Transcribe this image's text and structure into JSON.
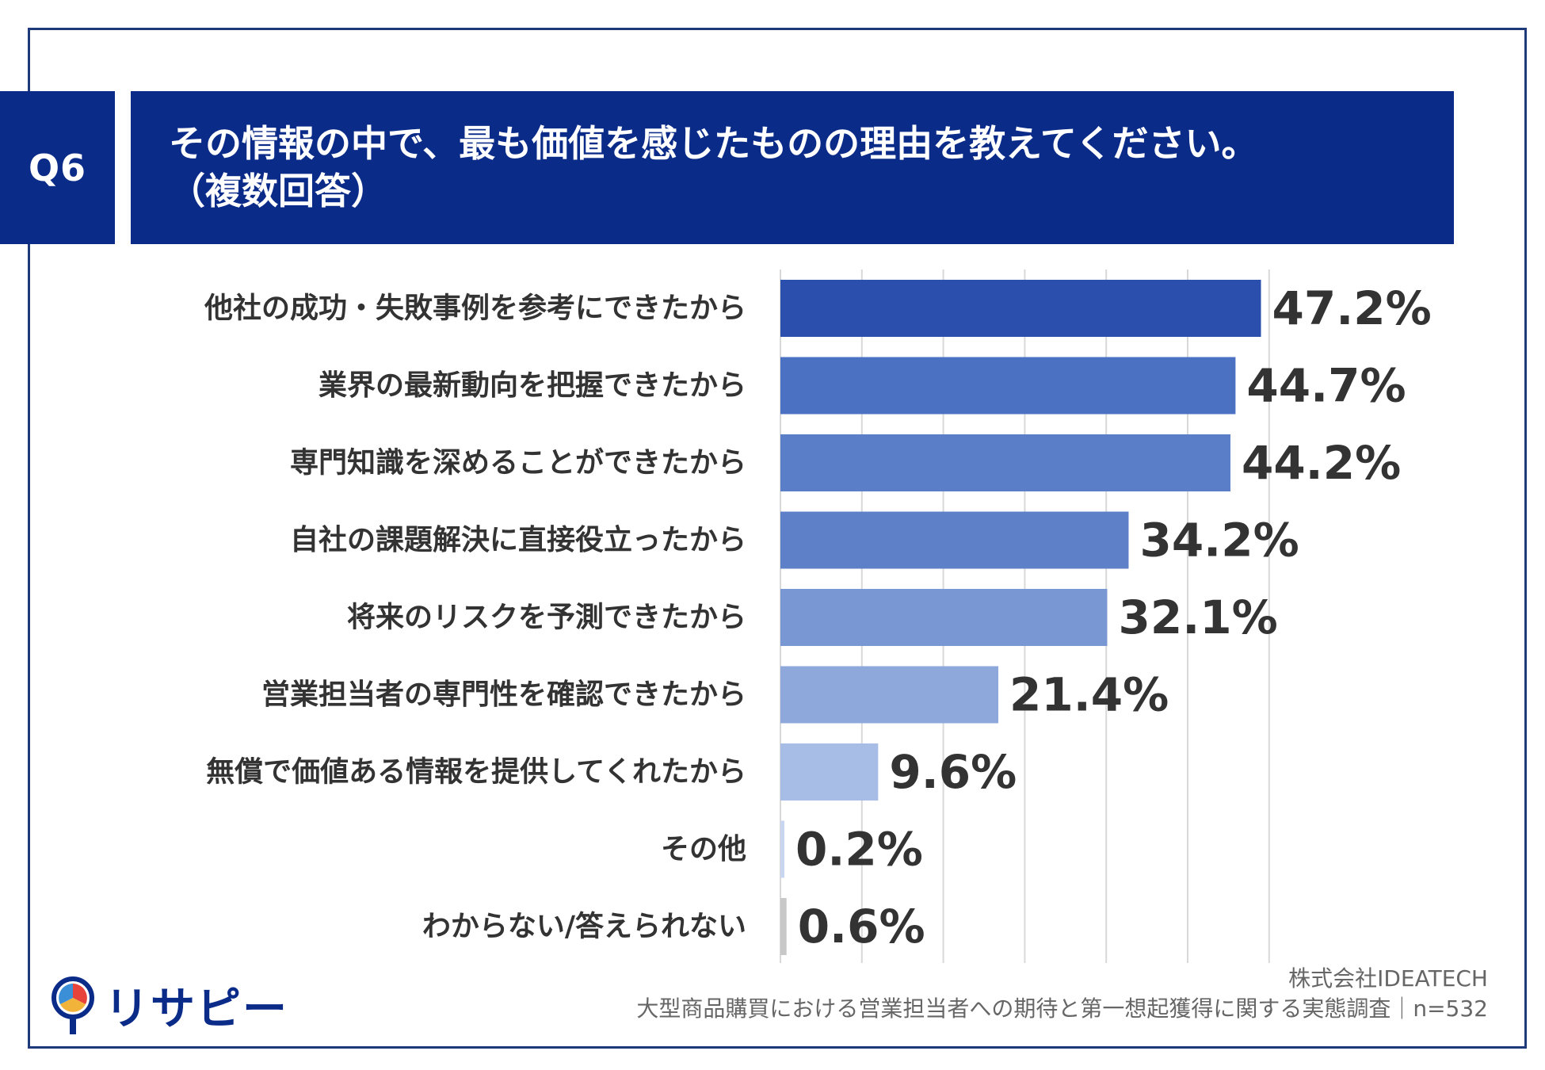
{
  "badge": "Q6",
  "title": {
    "line1": "その情報の中で、最も価値を感じたものの理由を教えてください。",
    "line2": "（複数回答）"
  },
  "colors": {
    "navy": "#0b2b88",
    "text": "#333333",
    "grid": "#d8d8d8",
    "bars": [
      "#2a4fad",
      "#4b72c2",
      "#5a7ec8",
      "#5e80c8",
      "#7997d2",
      "#8ea8db",
      "#a8bde6",
      "#c9d6ef",
      "#c8c8c8"
    ]
  },
  "chart_data": {
    "type": "bar",
    "orientation": "horizontal",
    "categories": [
      "他社の成功・失敗事例を参考にできたから",
      "業界の最新動向を把握できたから",
      "専門知識を深めることができたから",
      "自社の課題解決に直接役立ったから",
      "将来のリスクを予測できたから",
      "営業担当者の専門性を確認できたから",
      "無償で価値ある情報を提供してくれたから",
      "その他",
      "わからない/答えられない"
    ],
    "values": [
      47.2,
      44.7,
      44.2,
      34.2,
      32.1,
      21.4,
      9.6,
      0.2,
      0.6
    ],
    "value_labels": [
      "47.2%",
      "44.7%",
      "44.2%",
      "34.2%",
      "32.1%",
      "21.4%",
      "9.6%",
      "0.2%",
      "0.6%"
    ],
    "xlim": [
      0,
      50
    ],
    "grid": true
  },
  "footer": {
    "logo_text": "リサピー",
    "company": "株式会社IDEATECH",
    "survey": "大型商品購買における営業担当者への期待と第一想起獲得に関する実態調査｜n=532"
  }
}
